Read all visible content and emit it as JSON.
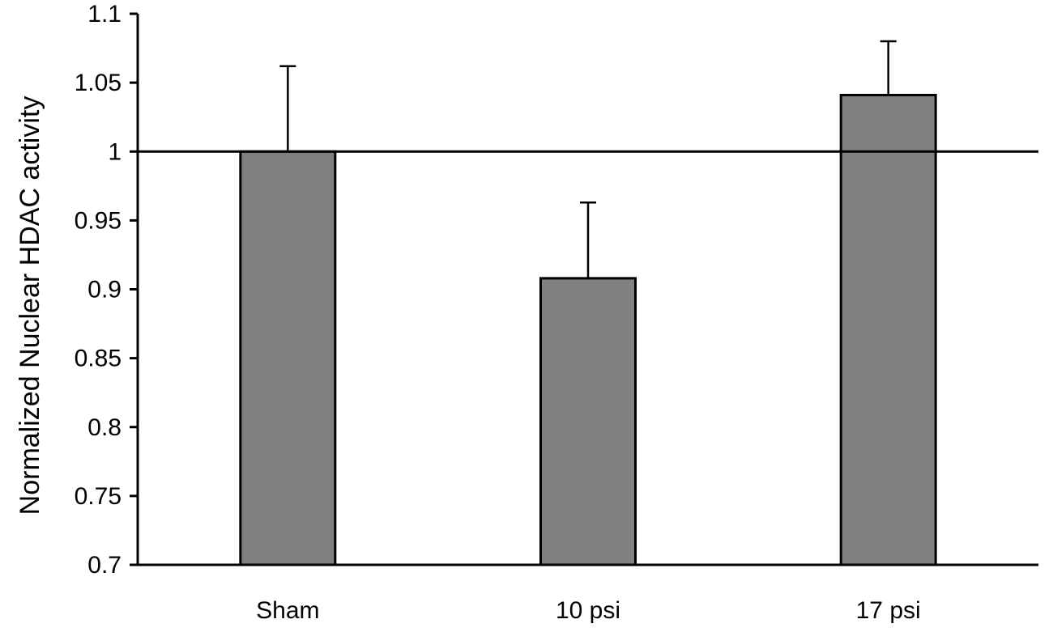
{
  "chart_data": {
    "type": "bar",
    "title": "",
    "xlabel": "",
    "ylabel": "Normalized Nuclear HDAC activity",
    "categories": [
      "Sham",
      "10 psi",
      "17 psi"
    ],
    "values": [
      1.0,
      0.908,
      1.041
    ],
    "error_upper": [
      0.062,
      0.055,
      0.039
    ],
    "ylim": [
      0.7,
      1.1
    ],
    "yticks": [
      0.7,
      0.75,
      0.8,
      0.85,
      0.9,
      0.95,
      1,
      1.05,
      1.1
    ],
    "ytick_labels": [
      "0.7",
      "0.75",
      "0.8",
      "0.85",
      "0.9",
      "0.95",
      "1",
      "1.05",
      "1.1"
    ],
    "reference_line": 1.0,
    "grid": false,
    "legend": "none",
    "bar_color": "#808080",
    "edge_color": "#000000"
  }
}
